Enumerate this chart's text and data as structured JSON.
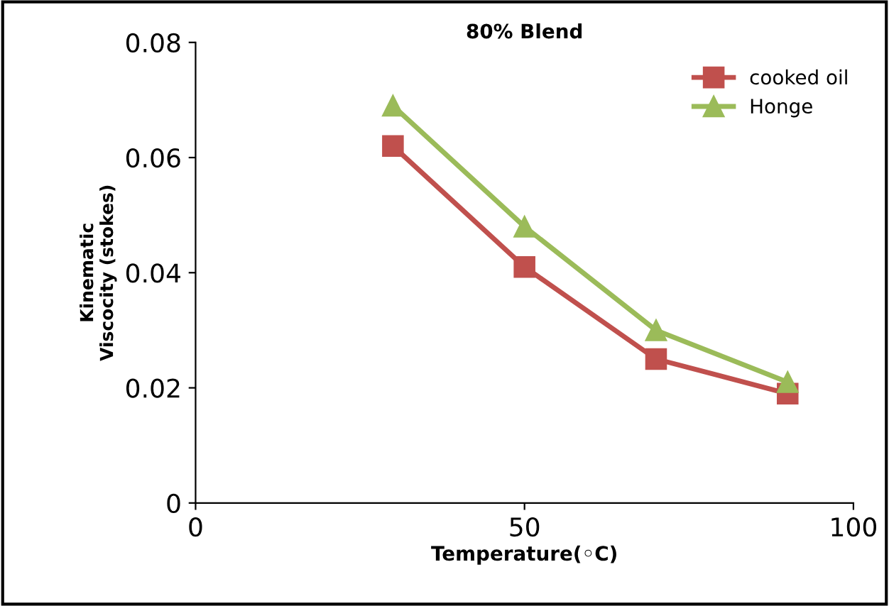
{
  "chart_data": {
    "type": "line",
    "title": "80% Blend",
    "xlabel": "Temperature(◦C)",
    "ylabel": "Kinematic\nViscocity (stokes)",
    "x": [
      30,
      50,
      70,
      90
    ],
    "series": [
      {
        "name": "cooked oil",
        "color": "#c0504d",
        "marker": "square",
        "values": [
          0.062,
          0.041,
          0.025,
          0.019
        ]
      },
      {
        "name": "Honge",
        "color": "#9bbb59",
        "marker": "triangle",
        "values": [
          0.069,
          0.048,
          0.03,
          0.021
        ]
      }
    ],
    "xlim": [
      0,
      100
    ],
    "xticks": [
      0,
      50,
      100
    ],
    "ylim": [
      0,
      0.08
    ],
    "yticks": [
      0,
      0.02,
      0.04,
      0.06,
      0.08
    ],
    "grid": false,
    "legend": "top right",
    "line_style": "solid"
  }
}
